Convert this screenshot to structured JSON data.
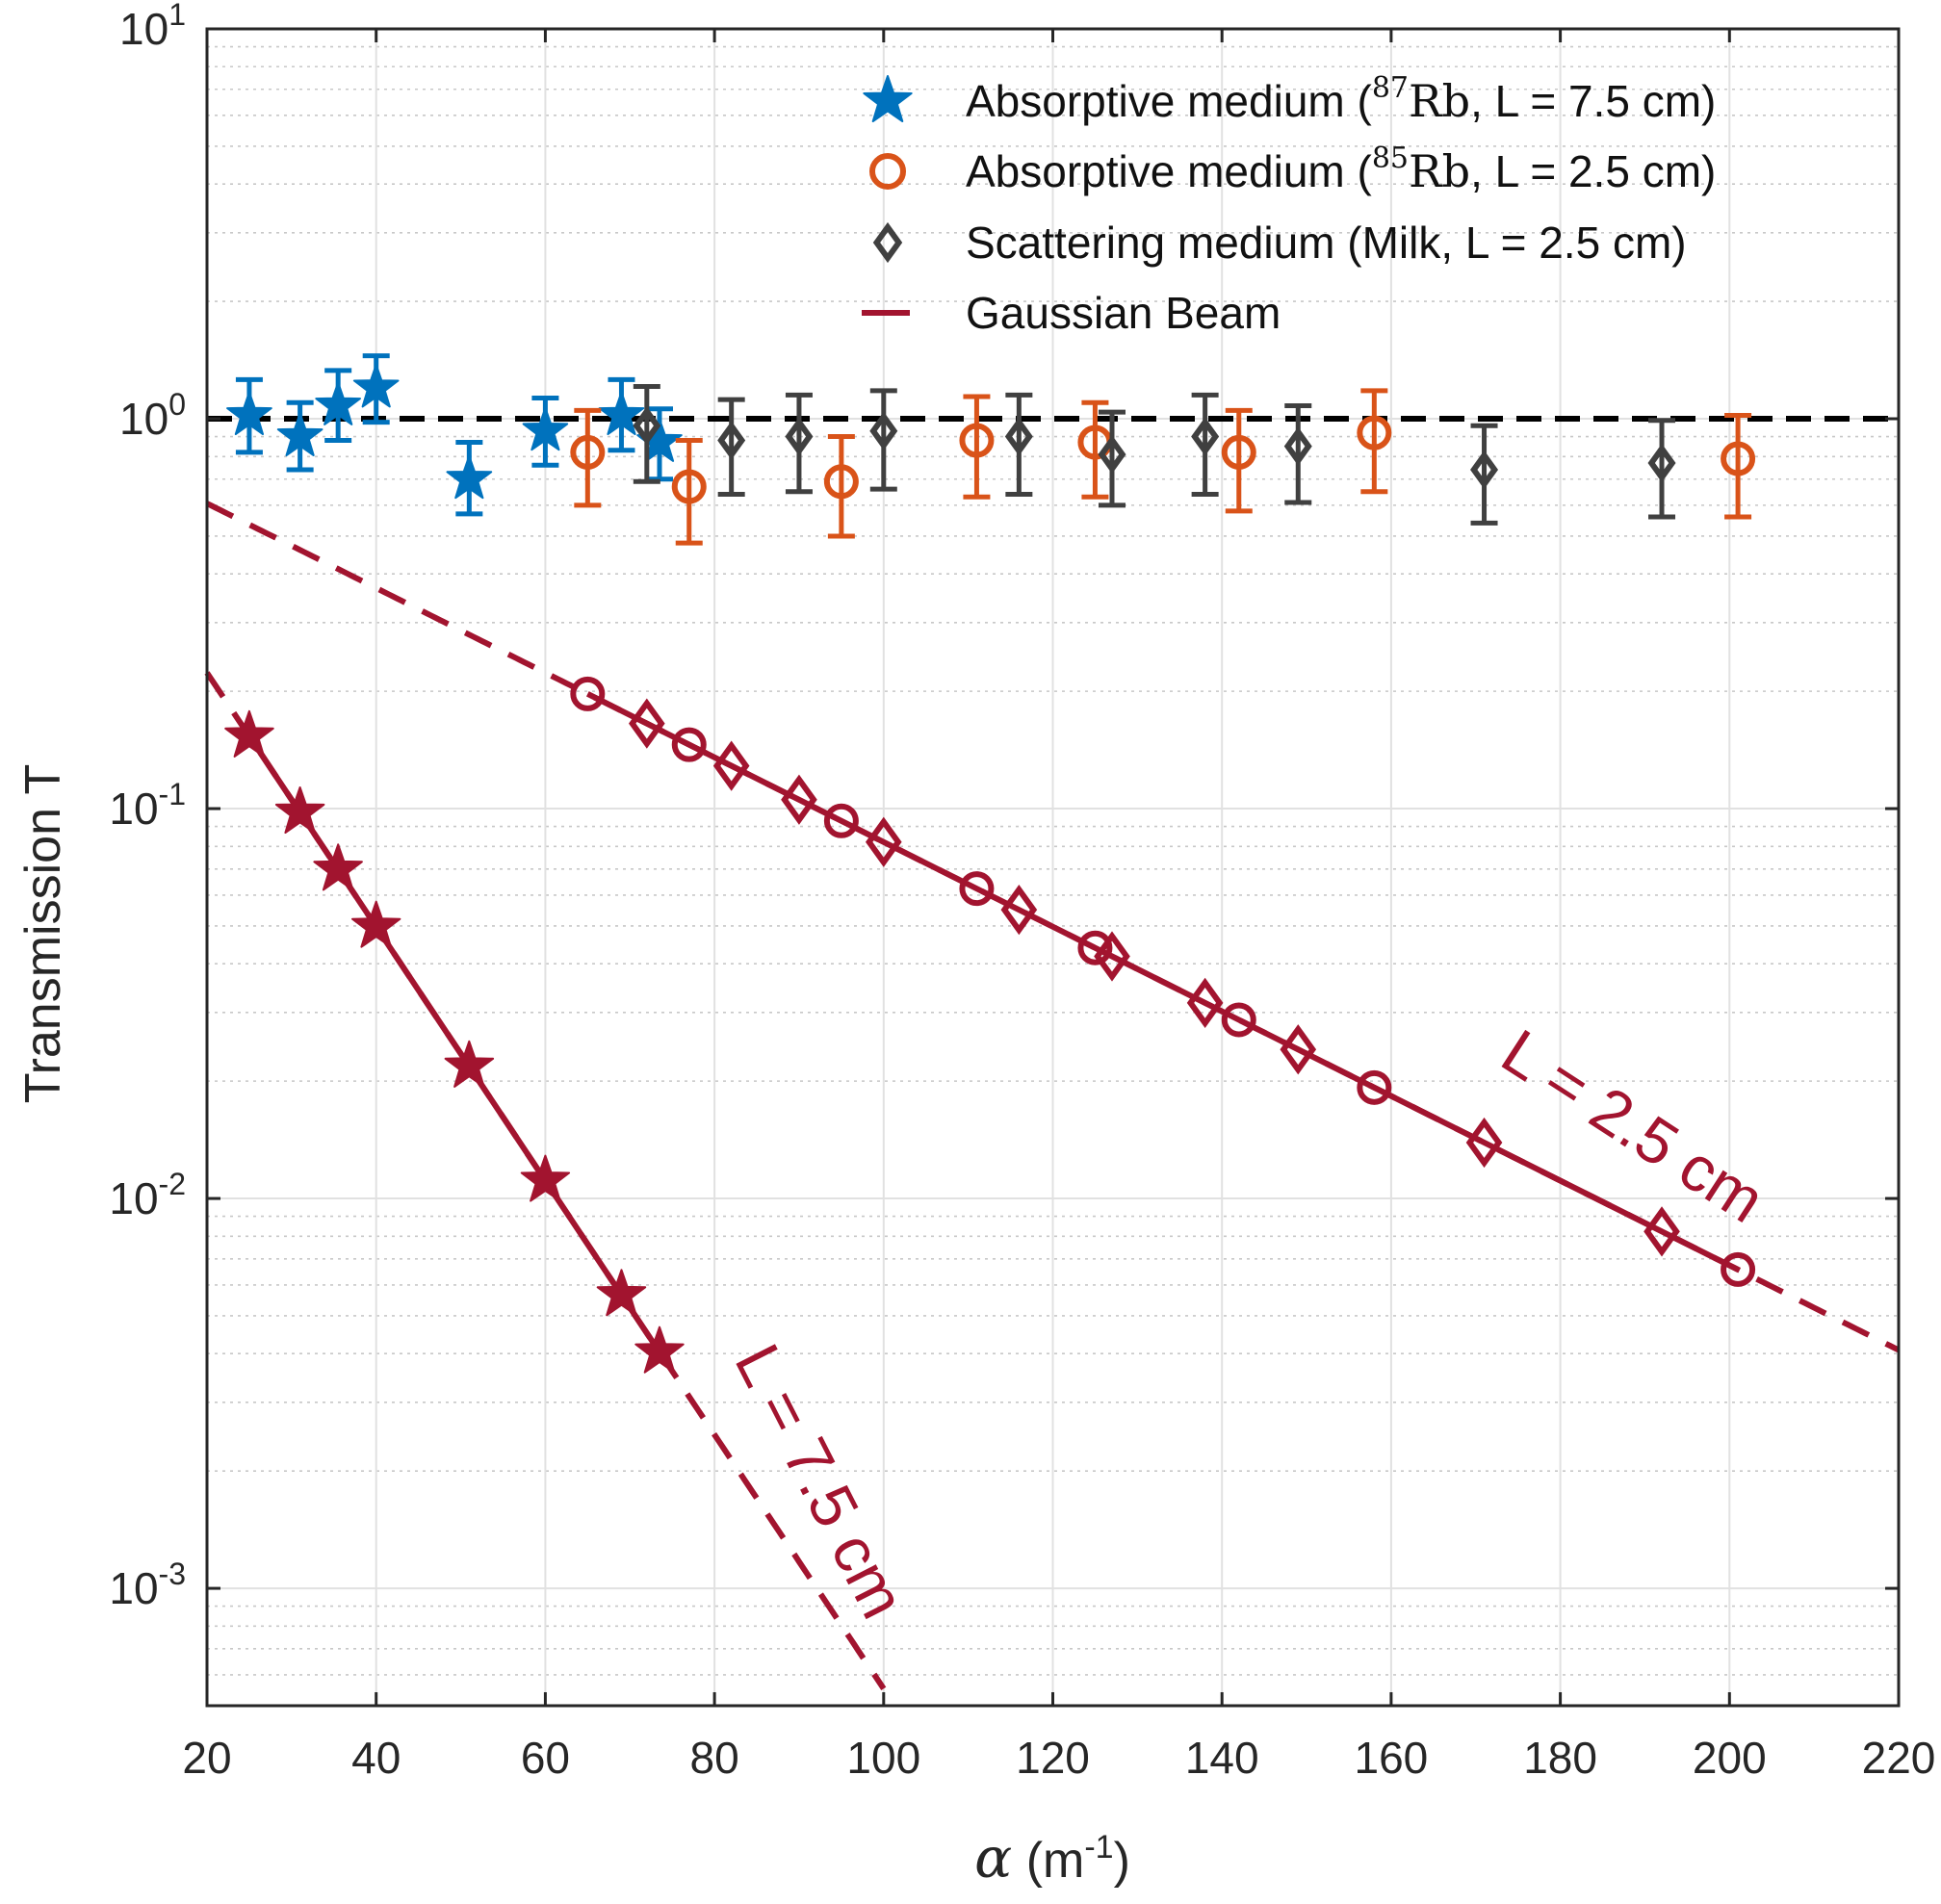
{
  "chart_data": {
    "type": "scatter",
    "y_scale": "log",
    "xlim": [
      20,
      220
    ],
    "ylim": [
      0.0005,
      10
    ],
    "xticks": [
      20,
      40,
      60,
      80,
      100,
      120,
      140,
      160,
      180,
      200,
      220
    ],
    "xtick_labels": [
      "20",
      "40",
      "60",
      "80",
      "100",
      "120",
      "140",
      "160",
      "180",
      "200",
      "220"
    ],
    "yticks": [
      {
        "value": 10,
        "base": "10",
        "exp": "1"
      },
      {
        "value": 1,
        "base": "10",
        "exp": "0"
      },
      {
        "value": 0.1,
        "base": "10",
        "exp": "-1"
      },
      {
        "value": 0.01,
        "base": "10",
        "exp": "-2"
      },
      {
        "value": 0.001,
        "base": "10",
        "exp": "-3"
      }
    ],
    "xlabel": {
      "symbol": "α",
      "unit_open": " (m",
      "unit_exp": "-1",
      "unit_close": ")"
    },
    "ylabel": "Transmission T",
    "grid": true,
    "minor_grid": true,
    "legend_position": "top-right",
    "reference_line": {
      "y": 1,
      "style": "dashed",
      "color": "#000000"
    },
    "series": [
      {
        "name": "Absorptive medium (87Rb, L = 7.5 cm)",
        "legend": {
          "prefix": "Absorptive medium (",
          "sup": "87",
          "element": "Rb",
          "suffix": ", L = 7.5 cm)"
        },
        "marker": "star",
        "color": "#0072BD",
        "points": [
          {
            "x": 25,
            "y": 1.02,
            "lo": 0.82,
            "hi": 1.26
          },
          {
            "x": 31,
            "y": 0.9,
            "lo": 0.74,
            "hi": 1.1
          },
          {
            "x": 35.5,
            "y": 1.08,
            "lo": 0.88,
            "hi": 1.33
          },
          {
            "x": 40,
            "y": 1.2,
            "lo": 0.98,
            "hi": 1.45
          },
          {
            "x": 51,
            "y": 0.7,
            "lo": 0.57,
            "hi": 0.87
          },
          {
            "x": 60,
            "y": 0.93,
            "lo": 0.76,
            "hi": 1.13
          },
          {
            "x": 69,
            "y": 1.02,
            "lo": 0.83,
            "hi": 1.26
          },
          {
            "x": 73.5,
            "y": 0.87,
            "lo": 0.7,
            "hi": 1.06
          }
        ]
      },
      {
        "name": "Absorptive medium (85Rb, L = 2.5 cm)",
        "legend": {
          "prefix": "Absorptive medium (",
          "sup": "85",
          "element": "Rb",
          "suffix": ", L = 2.5 cm)"
        },
        "marker": "circle",
        "color": "#D95319",
        "points": [
          {
            "x": 65,
            "y": 0.82,
            "lo": 0.6,
            "hi": 1.05
          },
          {
            "x": 77,
            "y": 0.67,
            "lo": 0.48,
            "hi": 0.88
          },
          {
            "x": 95,
            "y": 0.69,
            "lo": 0.5,
            "hi": 0.9
          },
          {
            "x": 111,
            "y": 0.88,
            "lo": 0.63,
            "hi": 1.14
          },
          {
            "x": 125,
            "y": 0.87,
            "lo": 0.63,
            "hi": 1.1
          },
          {
            "x": 142,
            "y": 0.82,
            "lo": 0.58,
            "hi": 1.05
          },
          {
            "x": 158,
            "y": 0.92,
            "lo": 0.65,
            "hi": 1.18
          },
          {
            "x": 201,
            "y": 0.79,
            "lo": 0.56,
            "hi": 1.02
          }
        ]
      },
      {
        "name": "Scattering medium (Milk, L = 2.5 cm)",
        "legend": {
          "prefix": "Scattering medium (Milk, L = 2.5 cm)",
          "sup": "",
          "element": "",
          "suffix": ""
        },
        "marker": "diamond",
        "color": "#404040",
        "points": [
          {
            "x": 72,
            "y": 0.96,
            "lo": 0.69,
            "hi": 1.21
          },
          {
            "x": 82,
            "y": 0.88,
            "lo": 0.64,
            "hi": 1.12
          },
          {
            "x": 90,
            "y": 0.9,
            "lo": 0.65,
            "hi": 1.15
          },
          {
            "x": 100,
            "y": 0.93,
            "lo": 0.66,
            "hi": 1.18
          },
          {
            "x": 116,
            "y": 0.9,
            "lo": 0.64,
            "hi": 1.15
          },
          {
            "x": 127,
            "y": 0.81,
            "lo": 0.6,
            "hi": 1.04
          },
          {
            "x": 138,
            "y": 0.9,
            "lo": 0.64,
            "hi": 1.15
          },
          {
            "x": 149,
            "y": 0.85,
            "lo": 0.61,
            "hi": 1.08
          },
          {
            "x": 171,
            "y": 0.74,
            "lo": 0.54,
            "hi": 0.96
          },
          {
            "x": 192,
            "y": 0.77,
            "lo": 0.56,
            "hi": 0.99
          }
        ]
      },
      {
        "name": "Gaussian Beam",
        "legend": {
          "prefix": "Gaussian Beam",
          "sup": "",
          "element": "",
          "suffix": ""
        },
        "marker": "line",
        "color": "#A2142F"
      }
    ],
    "gaussian_curves": [
      {
        "label": "L = 2.5 cm",
        "length_m": 0.025,
        "dash_x": [
          20,
          220
        ],
        "solid_x": [
          65,
          201
        ],
        "markers": [
          {
            "shape": "circle",
            "x": [
              65,
              77,
              95,
              111,
              125,
              142,
              158,
              201
            ]
          },
          {
            "shape": "diamond",
            "x": [
              72,
              82,
              90,
              100,
              116,
              127,
              138,
              149,
              171,
              192
            ]
          }
        ]
      },
      {
        "label": "L = 7.5 cm",
        "length_m": 0.075,
        "dash_x": [
          20,
          100
        ],
        "solid_x": [
          25,
          73.5
        ],
        "markers": [
          {
            "shape": "star",
            "x": [
              25,
              31,
              35.5,
              40,
              51,
              60,
              69,
              73.5
            ]
          }
        ]
      }
    ]
  }
}
